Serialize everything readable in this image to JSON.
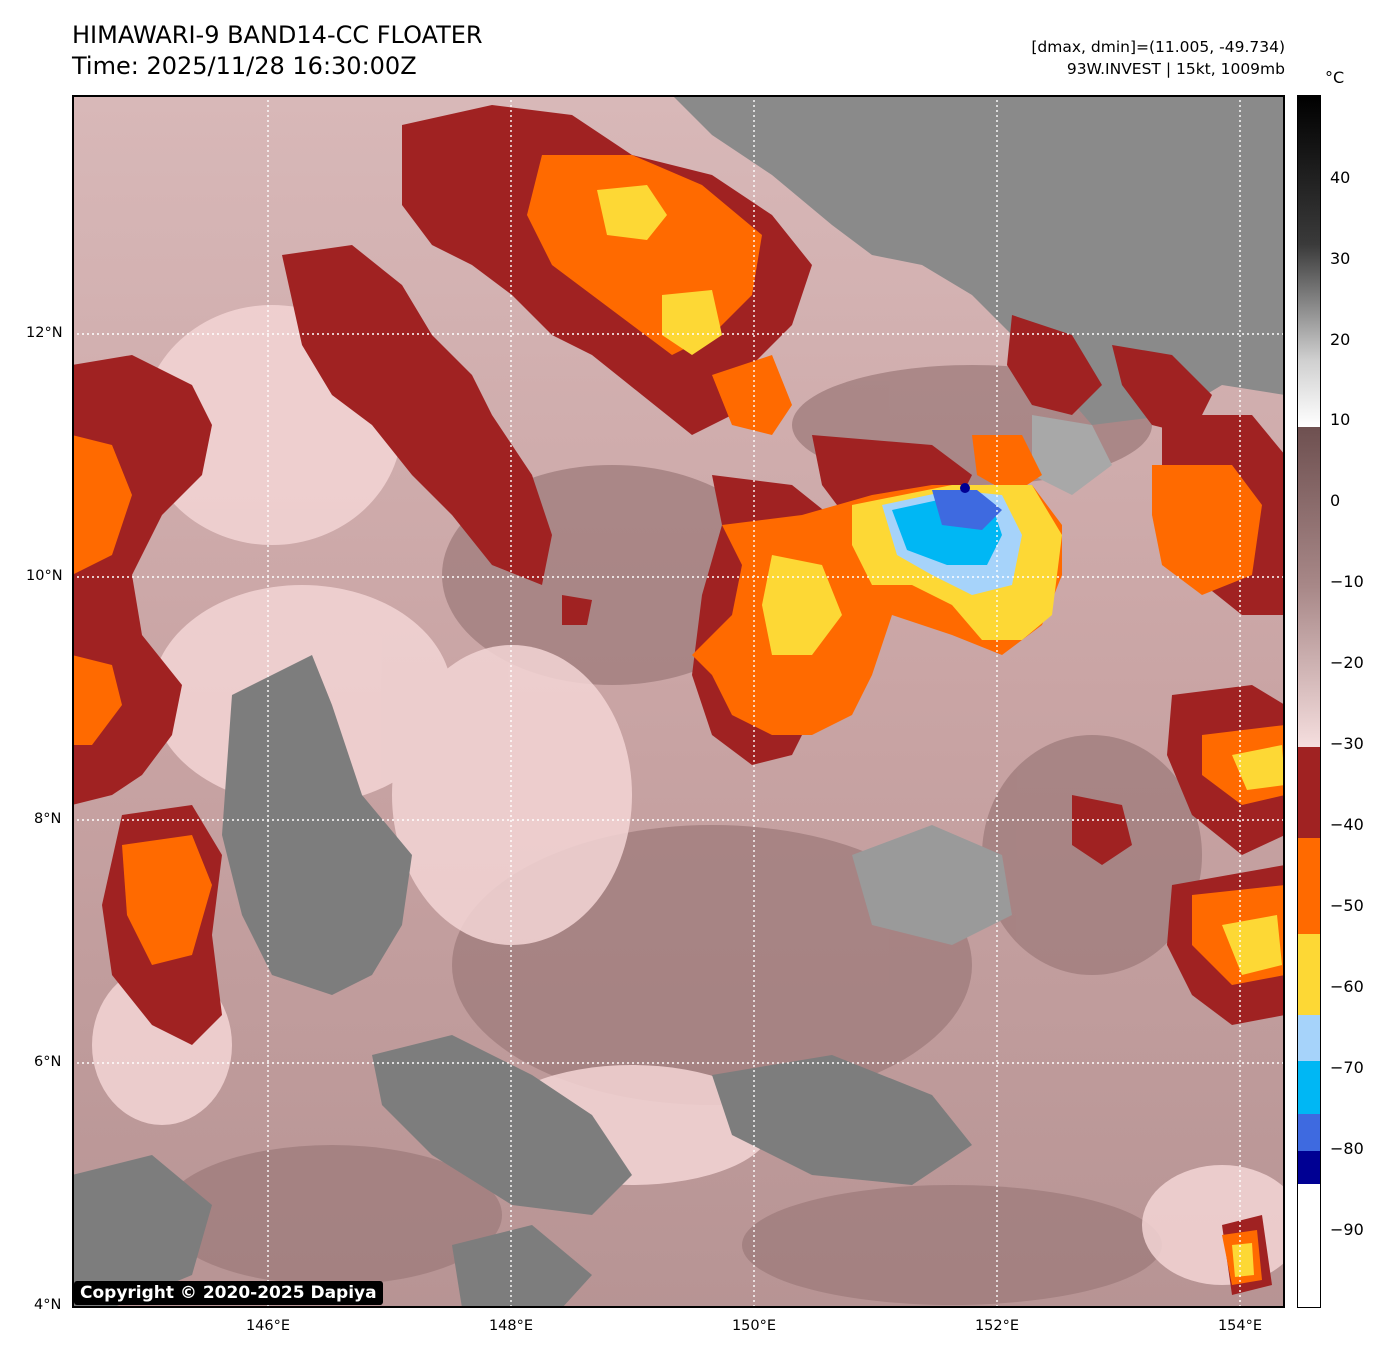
{
  "header": {
    "title_line1": "HIMAWARI-9 BAND14-CC FLOATER",
    "title_line2": "Time: 2025/11/28 16:30:00Z",
    "range_text": "[dmax, dmin]=(11.005, -49.734)",
    "storm_text": "93W.INVEST | 15kt, 1009mb"
  },
  "map": {
    "lat_labels": [
      "12°N",
      "10°N",
      "8°N",
      "6°N",
      "4°N"
    ],
    "lon_labels": [
      "146°E",
      "148°E",
      "150°E",
      "152°E",
      "154°E"
    ],
    "copyright": "Copyright © 2020-2025 Dapiya",
    "storm_center": {
      "lon": 151.8,
      "lat": 10.3
    }
  },
  "colorbar": {
    "unit": "°C",
    "labels": [
      "40",
      "30",
      "20",
      "10",
      "0",
      "−10",
      "−20",
      "−30",
      "−40",
      "−50",
      "−60",
      "−70",
      "−80",
      "−90"
    ],
    "colors": {
      "warm": "#000000",
      "gray": "#7a7a7a",
      "mauve": "#8a6565",
      "pink": "#f3d5d5",
      "darkred": "#a02222",
      "orange": "#ff6a00",
      "yellow": "#fdd835",
      "lightblue": "#a6d3fa",
      "cyan": "#00b7f4",
      "royal": "#3e6ae0",
      "navy": "#000093",
      "white": "#ffffff"
    }
  }
}
